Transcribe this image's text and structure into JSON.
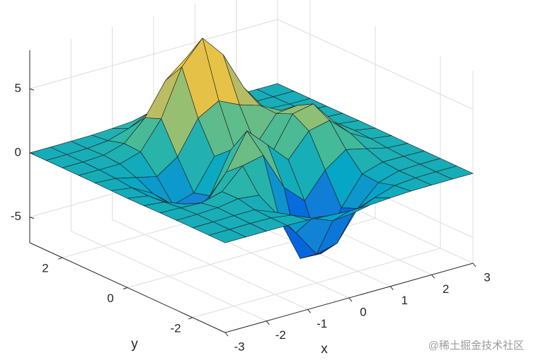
{
  "chart_data": {
    "type": "surface",
    "x": [
      -3,
      -2.5,
      -2,
      -1.5,
      -1,
      -0.5,
      0,
      0.5,
      1,
      1.5,
      2,
      2.5,
      3
    ],
    "y": [
      -3,
      -2.5,
      -2,
      -1.5,
      -1,
      -0.5,
      0,
      0.5,
      1,
      1.5,
      2,
      2.5,
      3
    ],
    "z": [
      [
        0,
        0,
        0,
        0,
        -0.03,
        -0.14,
        -0.24,
        -0.22,
        -0.11,
        -0.03,
        -0.01,
        0,
        0
      ],
      [
        0,
        0,
        0.02,
        0,
        -0.23,
        -0.92,
        -1.57,
        -1.41,
        -0.69,
        -0.18,
        -0.03,
        0,
        0
      ],
      [
        0,
        0.01,
        0.05,
        0.05,
        -0.59,
        -2.64,
        -4.76,
        -4.35,
        -2.1,
        -0.53,
        -0.06,
        0,
        0
      ],
      [
        0,
        0.01,
        0.08,
        0.33,
        0.15,
        -2.19,
        -5.68,
        -5.76,
        -2.63,
        -0.44,
        0.04,
        0.03,
        0
      ],
      [
        -0.01,
        -0.06,
        -0.13,
        0.3,
        1.86,
        2.22,
        -0.72,
        -2.22,
        -0.27,
        0.88,
        0.5,
        0.11,
        0.01
      ],
      [
        -0.03,
        -0.2,
        -0.8,
        -1.21,
        0.8,
        3.55,
        2.0,
        0.39,
        2.2,
        2.56,
        1.12,
        0.24,
        0.03
      ],
      [
        -0.04,
        -0.3,
        -1.33,
        -2.77,
        -1.65,
        1.48,
        0.98,
        0.37,
        2.94,
        3.27,
        1.41,
        0.3,
        0.03
      ],
      [
        -0.03,
        -0.25,
        -1.12,
        -2.49,
        -2.0,
        0.39,
        0.46,
        0.38,
        2.38,
        2.56,
        1.09,
        0.23,
        0.03
      ],
      [
        -0.01,
        -0.11,
        -0.48,
        -0.86,
        0.23,
        2.79,
        3.69,
        2.93,
        2.43,
        1.58,
        0.58,
        0.11,
        0.01
      ],
      [
        0,
        -0.02,
        -0.01,
        0.48,
        2.61,
        6.2,
        8.0,
        6.25,
        3.25,
        1.19,
        0.29,
        0.05,
        0
      ],
      [
        0,
        0.01,
        0.08,
        0.55,
        2.1,
        4.56,
        5.86,
        4.57,
        2.21,
        0.68,
        0.13,
        0.02,
        0
      ],
      [
        0,
        0,
        0.03,
        0.19,
        0.69,
        1.47,
        1.88,
        1.47,
        0.7,
        0.2,
        0.04,
        0,
        0
      ],
      [
        0,
        0,
        0.01,
        0.03,
        0.11,
        0.23,
        0.3,
        0.23,
        0.11,
        0.03,
        0.01,
        0,
        0
      ]
    ],
    "xlim": [
      -3,
      3
    ],
    "ylim": [
      -3,
      3
    ],
    "zlim": [
      -7,
      8
    ],
    "xticks": [
      -3,
      -2,
      -1,
      0,
      1,
      2,
      3
    ],
    "yticks": [
      -2,
      0,
      2
    ],
    "zticks": [
      -5,
      0,
      5
    ],
    "xlabel": "x",
    "ylabel": "y",
    "grid": true,
    "colormap": [
      "#352a87",
      "#0363e1",
      "#1485d4",
      "#06a7c6",
      "#38b99e",
      "#92bf73",
      "#d9ba56",
      "#fcce2e",
      "#f9fb0e"
    ],
    "edge_color": "#1a1a1a"
  },
  "watermark": "@稀土掘金技术社区"
}
